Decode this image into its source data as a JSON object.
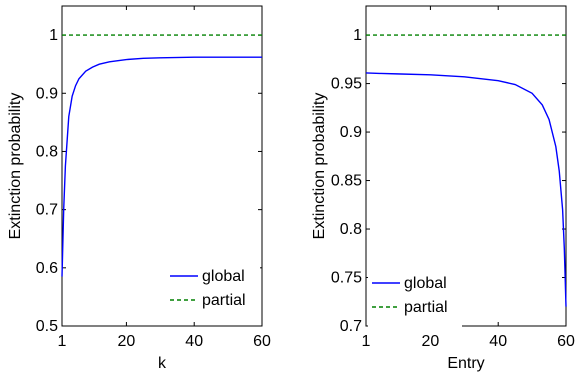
{
  "chart_data": [
    {
      "type": "line",
      "title": "",
      "xlabel": "k",
      "ylabel": "Extinction probability",
      "xlim": [
        1,
        60
      ],
      "ylim": [
        0.5,
        1.05
      ],
      "xticks": [
        1,
        20,
        40,
        60
      ],
      "yticks": [
        0.5,
        0.6,
        0.7,
        0.8,
        0.9,
        1
      ],
      "ytick_labels": [
        "0.5",
        "0.6",
        "0.7",
        "0.8",
        "0.9",
        "1"
      ],
      "grid": false,
      "legend_position": "bottom-right",
      "series": [
        {
          "name": "global",
          "style": "solid",
          "color": "#0000ff",
          "x": [
            1,
            1.5,
            2,
            3,
            4,
            5,
            6,
            8,
            10,
            12,
            15,
            20,
            25,
            30,
            40,
            50,
            60
          ],
          "y": [
            0.585,
            0.7,
            0.775,
            0.86,
            0.895,
            0.913,
            0.925,
            0.938,
            0.945,
            0.95,
            0.954,
            0.958,
            0.96,
            0.961,
            0.962,
            0.962,
            0.962
          ]
        },
        {
          "name": "partial",
          "style": "dashed",
          "color": "#008000",
          "x": [
            1,
            60
          ],
          "y": [
            1,
            1
          ]
        }
      ]
    },
    {
      "type": "line",
      "title": "",
      "xlabel": "Entry",
      "ylabel": "Extinction probability",
      "xlim": [
        1,
        60
      ],
      "ylim": [
        0.7,
        1.03
      ],
      "xticks": [
        1,
        20,
        40,
        60
      ],
      "yticks": [
        0.7,
        0.75,
        0.8,
        0.85,
        0.9,
        0.95,
        1
      ],
      "ytick_labels": [
        "0.7",
        "0.75",
        "0.8",
        "0.85",
        "0.9",
        "0.95",
        "1"
      ],
      "grid": false,
      "legend_position": "bottom-left",
      "series": [
        {
          "name": "global",
          "style": "solid",
          "color": "#0000ff",
          "x": [
            1,
            5,
            10,
            20,
            30,
            40,
            45,
            50,
            53,
            55,
            57,
            58,
            59,
            59.5,
            60
          ],
          "y": [
            0.961,
            0.9605,
            0.96,
            0.959,
            0.957,
            0.953,
            0.949,
            0.94,
            0.928,
            0.913,
            0.885,
            0.86,
            0.82,
            0.78,
            0.72
          ]
        },
        {
          "name": "partial",
          "style": "dashed",
          "color": "#008000",
          "x": [
            1,
            60
          ],
          "y": [
            1,
            1
          ]
        }
      ]
    }
  ]
}
